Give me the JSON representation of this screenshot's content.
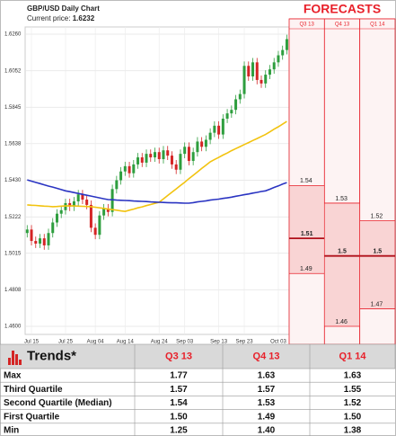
{
  "chart_data": {
    "type": "candlestick",
    "title": "GBP/USD Daily Chart",
    "subtitle": "Current price:",
    "current_price": 1.6232,
    "categories": [
      null,
      "Jul 15",
      null,
      null,
      null,
      null,
      null,
      null,
      null,
      "Jul 25",
      null,
      null,
      null,
      null,
      null,
      null,
      "Aug 04",
      null,
      null,
      null,
      null,
      null,
      null,
      "Aug 14",
      null,
      null,
      null,
      null,
      null,
      null,
      null,
      "Aug 24",
      null,
      null,
      null,
      null,
      null,
      "Sep 03",
      null,
      null,
      null,
      null,
      null,
      null,
      null,
      "Sep 13",
      null,
      null,
      null,
      null,
      null,
      "Sep 23",
      null,
      null,
      null,
      null,
      null,
      null,
      null,
      "Oct 03",
      null,
      null
    ],
    "candles": {
      "open": [
        1.513,
        1.515,
        1.5085,
        1.507,
        1.51,
        1.506,
        1.513,
        1.519,
        1.524,
        1.526,
        1.53,
        1.528,
        1.531,
        1.535,
        1.532,
        1.529,
        1.516,
        1.512,
        1.523,
        1.527,
        1.525,
        1.538,
        1.543,
        1.548,
        1.551,
        1.547,
        1.552,
        1.556,
        1.553,
        1.558,
        1.556,
        1.559,
        1.555,
        1.56,
        1.557,
        1.552,
        1.549,
        1.558,
        1.562,
        1.554,
        1.559,
        1.565,
        1.562,
        1.566,
        1.57,
        1.574,
        1.569,
        1.578,
        1.581,
        1.583,
        1.589,
        1.592,
        1.608,
        1.602,
        1.61,
        1.6,
        1.598,
        1.603,
        1.606,
        1.61,
        1.614,
        1.617
      ],
      "high": [
        1.5175,
        1.5175,
        1.511,
        1.5125,
        1.5125,
        1.5155,
        1.5215,
        1.5265,
        1.5285,
        1.5325,
        1.5325,
        1.5335,
        1.5375,
        1.5375,
        1.5345,
        1.5315,
        1.5185,
        1.5255,
        1.5295,
        1.5295,
        1.5405,
        1.5455,
        1.5505,
        1.5535,
        1.5535,
        1.5545,
        1.5585,
        1.5585,
        1.5605,
        1.5605,
        1.5615,
        1.5615,
        1.5625,
        1.5625,
        1.5595,
        1.5545,
        1.5605,
        1.5645,
        1.5645,
        1.5615,
        1.5675,
        1.5675,
        1.5685,
        1.5725,
        1.5765,
        1.5765,
        1.5805,
        1.5835,
        1.5855,
        1.5915,
        1.5945,
        1.6105,
        1.6105,
        1.6125,
        1.6125,
        1.6025,
        1.6055,
        1.6085,
        1.6125,
        1.6165,
        1.6195,
        1.6257
      ],
      "low": [
        1.5105,
        1.506,
        1.5045,
        1.5045,
        1.5035,
        1.5035,
        1.5105,
        1.5165,
        1.5215,
        1.5235,
        1.5255,
        1.5255,
        1.5285,
        1.5295,
        1.5265,
        1.5135,
        1.5095,
        1.5095,
        1.5205,
        1.5225,
        1.5225,
        1.5355,
        1.5405,
        1.5455,
        1.5445,
        1.5445,
        1.5495,
        1.5505,
        1.5505,
        1.5535,
        1.5535,
        1.5525,
        1.5525,
        1.5545,
        1.5495,
        1.5465,
        1.5465,
        1.5555,
        1.5515,
        1.5515,
        1.5565,
        1.5595,
        1.5595,
        1.5635,
        1.5675,
        1.5665,
        1.5665,
        1.5755,
        1.5785,
        1.5805,
        1.5865,
        1.5895,
        1.5995,
        1.5995,
        1.5975,
        1.5955,
        1.5955,
        1.6005,
        1.6035,
        1.6075,
        1.6115,
        1.6145
      ],
      "close": [
        1.515,
        1.5085,
        1.507,
        1.51,
        1.506,
        1.513,
        1.519,
        1.524,
        1.526,
        1.53,
        1.528,
        1.531,
        1.535,
        1.532,
        1.529,
        1.516,
        1.512,
        1.523,
        1.527,
        1.525,
        1.538,
        1.543,
        1.548,
        1.551,
        1.547,
        1.552,
        1.556,
        1.553,
        1.558,
        1.556,
        1.559,
        1.555,
        1.56,
        1.557,
        1.552,
        1.549,
        1.558,
        1.562,
        1.554,
        1.559,
        1.565,
        1.562,
        1.566,
        1.57,
        1.574,
        1.569,
        1.578,
        1.581,
        1.583,
        1.589,
        1.592,
        1.608,
        1.602,
        1.61,
        1.6,
        1.598,
        1.603,
        1.606,
        1.61,
        1.614,
        1.617,
        1.6232
      ],
      "up_color": "#2e9e3e",
      "down_color": "#d42424"
    },
    "series": [
      {
        "color": "#f2c30f",
        "values": [
          1.529,
          1.5288,
          1.5287,
          1.5285,
          1.5283,
          1.5282,
          1.528,
          1.5281,
          1.5283,
          1.5284,
          1.5285,
          1.5284,
          1.5283,
          1.5282,
          1.5281,
          1.528,
          1.5277,
          1.5273,
          1.527,
          1.5266,
          1.5263,
          1.526,
          1.5256,
          1.5253,
          1.526,
          1.5266,
          1.5273,
          1.5279,
          1.5286,
          1.5292,
          1.5299,
          1.5305,
          1.5324,
          1.5343,
          1.5362,
          1.5381,
          1.54,
          1.5419,
          1.5439,
          1.5458,
          1.5477,
          1.5497,
          1.5516,
          1.5535,
          1.5548,
          1.556,
          1.5573,
          1.5585,
          1.5598,
          1.561,
          1.5621,
          1.5633,
          1.5644,
          1.5656,
          1.5667,
          1.5679,
          1.569,
          1.5705,
          1.572,
          1.5734,
          1.5749,
          1.5764
        ]
      },
      {
        "color": "#2a34c2",
        "values": [
          1.5432,
          1.5425,
          1.5418,
          1.5411,
          1.5404,
          1.5397,
          1.5391,
          1.5384,
          1.5377,
          1.537,
          1.5365,
          1.536,
          1.5355,
          1.535,
          1.5345,
          1.534,
          1.5335,
          1.533,
          1.5325,
          1.532,
          1.5319,
          1.5317,
          1.5316,
          1.5315,
          1.5314,
          1.5312,
          1.5311,
          1.531,
          1.5309,
          1.5307,
          1.5306,
          1.5305,
          1.5304,
          1.5303,
          1.5302,
          1.5302,
          1.5301,
          1.53,
          1.53,
          1.5303,
          1.5307,
          1.531,
          1.5313,
          1.5317,
          1.532,
          1.5323,
          1.5327,
          1.533,
          1.5334,
          1.5339,
          1.5343,
          1.5348,
          1.5352,
          1.5357,
          1.5361,
          1.5366,
          1.537,
          1.5379,
          1.5389,
          1.5398,
          1.5408,
          1.5417
        ]
      }
    ],
    "ylim": [
      1.4554,
      1.6301
    ],
    "yticks": [
      {
        "value": 1.626,
        "label": "1.6260"
      },
      1.6052,
      1.5845,
      1.5638,
      {
        "value": 1.543,
        "label": "1.5430"
      },
      1.5222,
      1.5015,
      1.4808,
      {
        "value": 1.46,
        "label": "1.4600"
      }
    ],
    "grid": true,
    "forecasts": {
      "title": "FORECASTS",
      "color": "#e8202a",
      "columns": [
        {
          "label": "Q3 13",
          "values": [
            1.54,
            1.51,
            1.49
          ]
        },
        {
          "label": "Q4 13",
          "values": [
            1.53,
            1.5,
            1.46
          ]
        },
        {
          "label": "Q1 14",
          "values": [
            1.52,
            1.5,
            1.47
          ]
        }
      ]
    }
  },
  "table": {
    "header": [
      "Trends*",
      "Q3 13",
      "Q4 13",
      "Q1 14"
    ],
    "rows": [
      [
        "Max",
        "1.77",
        "1.63",
        "1.63"
      ],
      [
        "Third Quartile",
        "1.57",
        "1.57",
        "1.55"
      ],
      [
        "Second Quartile (Median)",
        "1.54",
        "1.53",
        "1.52"
      ],
      [
        "First Quartile",
        "1.50",
        "1.49",
        "1.50"
      ],
      [
        "Min",
        "1.25",
        "1.40",
        "1.38"
      ]
    ]
  }
}
